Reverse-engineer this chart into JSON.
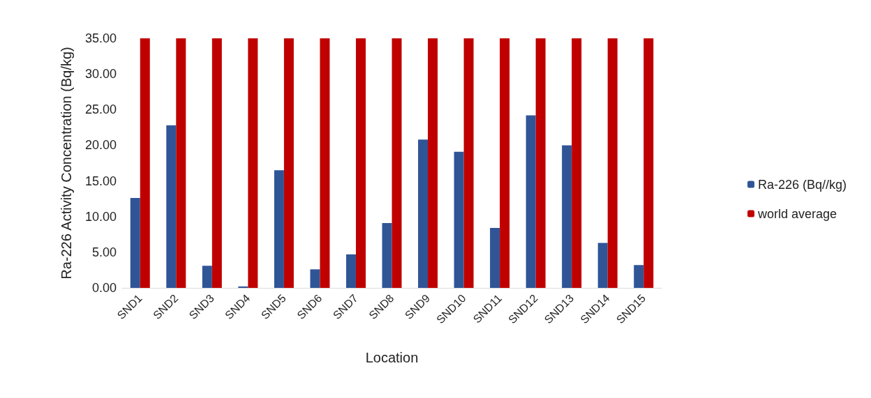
{
  "chart_data": {
    "type": "bar",
    "xlabel": "Location",
    "ylabel": "Ra-226 Activity Concentration (Bq/kg)",
    "categories": [
      "SND1",
      "SND2",
      "SND3",
      "SND4",
      "SND5",
      "SND6",
      "SND7",
      "SND8",
      "SND9",
      "SND10",
      "SND11",
      "SND12",
      "SND13",
      "SND14",
      "SND15"
    ],
    "series": [
      {
        "name": "Ra-226 (Bq//kg)",
        "color": "#2f5597",
        "values": [
          12.6,
          22.8,
          3.1,
          0.2,
          16.5,
          2.6,
          4.7,
          9.1,
          20.8,
          19.1,
          8.4,
          24.2,
          20.0,
          6.3,
          3.2
        ]
      },
      {
        "name": "world average",
        "color": "#c00000",
        "values": [
          35,
          35,
          35,
          35,
          35,
          35,
          35,
          35,
          35,
          35,
          35,
          35,
          35,
          35,
          35
        ]
      }
    ],
    "ylim": [
      0,
      35
    ],
    "yticks": [
      {
        "value": 0,
        "label": "0.00"
      },
      {
        "value": 5,
        "label": "5.00"
      },
      {
        "value": 10,
        "label": "10.00"
      },
      {
        "value": 15,
        "label": "15.00"
      },
      {
        "value": 20,
        "label": "20.00"
      },
      {
        "value": 25,
        "label": "25.00"
      },
      {
        "value": 30,
        "label": "30.00"
      },
      {
        "value": 35,
        "label": "35.00"
      }
    ],
    "grid": false,
    "legend": "right"
  }
}
